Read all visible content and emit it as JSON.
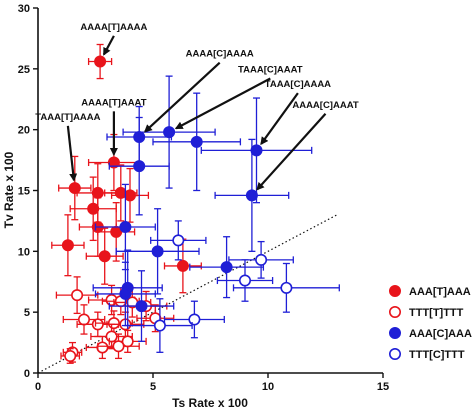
{
  "chart_data": {
    "type": "scatter",
    "xlabel": "Ts Rate x 100",
    "ylabel": "Tv Rate x 100",
    "xlim": [
      0,
      15
    ],
    "ylim": [
      0,
      30
    ],
    "xticks": [
      0,
      5,
      10,
      15
    ],
    "yticks": [
      0,
      5,
      10,
      15,
      20,
      25,
      30
    ],
    "grid": false,
    "legend_position": "bottom-right",
    "diagonal_reference": {
      "style": "dotted",
      "from": [
        0,
        0
      ],
      "to": [
        13,
        13
      ]
    },
    "colors": {
      "red": "#e8141b",
      "blue": "#1f1fd6"
    },
    "series": [
      {
        "name": "AAA[T]AAA",
        "color": "#e8141b",
        "marker": "filled-circle",
        "points": [
          {
            "x": 2.7,
            "y": 25.6,
            "xerr": 0.5,
            "yerr": 1.4
          },
          {
            "x": 3.3,
            "y": 17.3,
            "xerr": 1.1,
            "yerr": 2.3
          },
          {
            "x": 1.6,
            "y": 15.2,
            "xerr": 0.7,
            "yerr": 2.6
          },
          {
            "x": 2.6,
            "y": 14.8,
            "xerr": 0.9,
            "yerr": 2.4
          },
          {
            "x": 3.6,
            "y": 14.8,
            "xerr": 0.7,
            "yerr": 2.3
          },
          {
            "x": 4.0,
            "y": 14.6,
            "xerr": 0.8,
            "yerr": 2.2
          },
          {
            "x": 2.4,
            "y": 13.5,
            "xerr": 1.0,
            "yerr": 2.6
          },
          {
            "x": 2.6,
            "y": 12.0,
            "xerr": 0.8,
            "yerr": 2.4
          },
          {
            "x": 3.4,
            "y": 11.6,
            "xerr": 0.8,
            "yerr": 2.4
          },
          {
            "x": 1.3,
            "y": 10.5,
            "xerr": 0.7,
            "yerr": 2.5
          },
          {
            "x": 6.3,
            "y": 8.8,
            "xerr": 0.8,
            "yerr": 2.2
          },
          {
            "x": 2.9,
            "y": 9.6,
            "xerr": 0.8,
            "yerr": 2.3
          }
        ]
      },
      {
        "name": "TTT[T]TTT",
        "color": "#e8141b",
        "marker": "open-circle",
        "points": [
          {
            "x": 1.7,
            "y": 6.4,
            "xerr": 0.9,
            "yerr": 1.5
          },
          {
            "x": 3.2,
            "y": 6.0,
            "xerr": 1.0,
            "yerr": 1.2
          },
          {
            "x": 3.6,
            "y": 5.9,
            "xerr": 0.8,
            "yerr": 1.1
          },
          {
            "x": 4.1,
            "y": 5.8,
            "xerr": 0.8,
            "yerr": 1.2
          },
          {
            "x": 4.7,
            "y": 5.5,
            "xerr": 0.9,
            "yerr": 1.2
          },
          {
            "x": 2.0,
            "y": 4.4,
            "xerr": 0.9,
            "yerr": 1.2
          },
          {
            "x": 2.6,
            "y": 4.0,
            "xerr": 0.9,
            "yerr": 1.0
          },
          {
            "x": 3.3,
            "y": 4.1,
            "xerr": 0.8,
            "yerr": 1.0
          },
          {
            "x": 3.8,
            "y": 4.0,
            "xerr": 0.8,
            "yerr": 1.0
          },
          {
            "x": 5.1,
            "y": 4.5,
            "xerr": 0.8,
            "yerr": 1.1
          },
          {
            "x": 3.2,
            "y": 3.0,
            "xerr": 0.9,
            "yerr": 1.0
          },
          {
            "x": 3.9,
            "y": 2.6,
            "xerr": 0.8,
            "yerr": 0.9
          },
          {
            "x": 2.8,
            "y": 2.1,
            "xerr": 0.7,
            "yerr": 0.9
          },
          {
            "x": 3.5,
            "y": 2.2,
            "xerr": 0.9,
            "yerr": 1.0
          },
          {
            "x": 1.5,
            "y": 1.7,
            "xerr": 0.4,
            "yerr": 0.8
          },
          {
            "x": 1.4,
            "y": 1.4,
            "xerr": 0.4,
            "yerr": 0.6
          }
        ]
      },
      {
        "name": "AAA[C]AAA",
        "color": "#1f1fd6",
        "marker": "filled-circle",
        "points": [
          {
            "x": 4.4,
            "y": 19.4,
            "xerr": 1.4,
            "yerr": 2.5
          },
          {
            "x": 5.7,
            "y": 19.8,
            "xerr": 2.0,
            "yerr": 4.6
          },
          {
            "x": 6.9,
            "y": 19.0,
            "xerr": 1.9,
            "yerr": 4.0
          },
          {
            "x": 9.5,
            "y": 18.3,
            "xerr": 2.4,
            "yerr": 4.3
          },
          {
            "x": 9.3,
            "y": 14.6,
            "xerr": 1.6,
            "yerr": 4.6
          },
          {
            "x": 4.4,
            "y": 17.0,
            "xerr": 1.3,
            "yerr": 4.0
          },
          {
            "x": 3.8,
            "y": 12.0,
            "xerr": 1.3,
            "yerr": 3.5
          },
          {
            "x": 5.2,
            "y": 10.0,
            "xerr": 1.8,
            "yerr": 3.5
          },
          {
            "x": 3.9,
            "y": 7.0,
            "xerr": 1.5,
            "yerr": 3.1
          },
          {
            "x": 3.8,
            "y": 6.5,
            "xerr": 1.3,
            "yerr": 2.6
          },
          {
            "x": 4.5,
            "y": 5.5,
            "xerr": 1.4,
            "yerr": 2.9
          },
          {
            "x": 8.2,
            "y": 8.7,
            "xerr": 1.6,
            "yerr": 2.5
          }
        ]
      },
      {
        "name": "TTT[C]TTT",
        "color": "#1f1fd6",
        "marker": "open-circle",
        "points": [
          {
            "x": 6.1,
            "y": 10.9,
            "xerr": 1.2,
            "yerr": 1.6
          },
          {
            "x": 9.7,
            "y": 9.3,
            "xerr": 1.4,
            "yerr": 1.5
          },
          {
            "x": 9.0,
            "y": 7.6,
            "xerr": 1.2,
            "yerr": 1.7
          },
          {
            "x": 10.8,
            "y": 7.0,
            "xerr": 2.3,
            "yerr": 2.0
          },
          {
            "x": 6.8,
            "y": 4.4,
            "xerr": 1.3,
            "yerr": 1.5
          },
          {
            "x": 5.3,
            "y": 3.9,
            "xerr": 1.4,
            "yerr": 2.2
          }
        ]
      }
    ],
    "annotations": [
      {
        "text": "AAAA[T]AAAA",
        "target": {
          "x": 2.7,
          "y": 25.6
        },
        "label_pos": {
          "x": 3.3,
          "y": 28.2
        }
      },
      {
        "text": "AAAA[C]AAAA",
        "target": {
          "x": 4.4,
          "y": 19.4
        },
        "label_pos": {
          "x": 7.9,
          "y": 26.0
        }
      },
      {
        "text": "TAAA[C]AAAT",
        "target": {
          "x": 5.7,
          "y": 19.8
        },
        "label_pos": {
          "x": 10.1,
          "y": 24.7
        }
      },
      {
        "text": "TAAA[C]AAAA",
        "target": {
          "x": 9.5,
          "y": 18.3
        },
        "label_pos": {
          "x": 11.3,
          "y": 23.5
        }
      },
      {
        "text": "AAAA[C]AAAT",
        "target": {
          "x": 9.3,
          "y": 14.6
        },
        "label_pos": {
          "x": 12.5,
          "y": 21.8
        }
      },
      {
        "text": "AAAA[T]AAAT",
        "target": {
          "x": 3.3,
          "y": 17.3
        },
        "label_pos": {
          "x": 3.3,
          "y": 22.0
        }
      },
      {
        "text": "TAAA[T]AAAA",
        "target": {
          "x": 1.6,
          "y": 15.2
        },
        "label_pos": {
          "x": 1.3,
          "y": 20.8
        }
      }
    ]
  }
}
